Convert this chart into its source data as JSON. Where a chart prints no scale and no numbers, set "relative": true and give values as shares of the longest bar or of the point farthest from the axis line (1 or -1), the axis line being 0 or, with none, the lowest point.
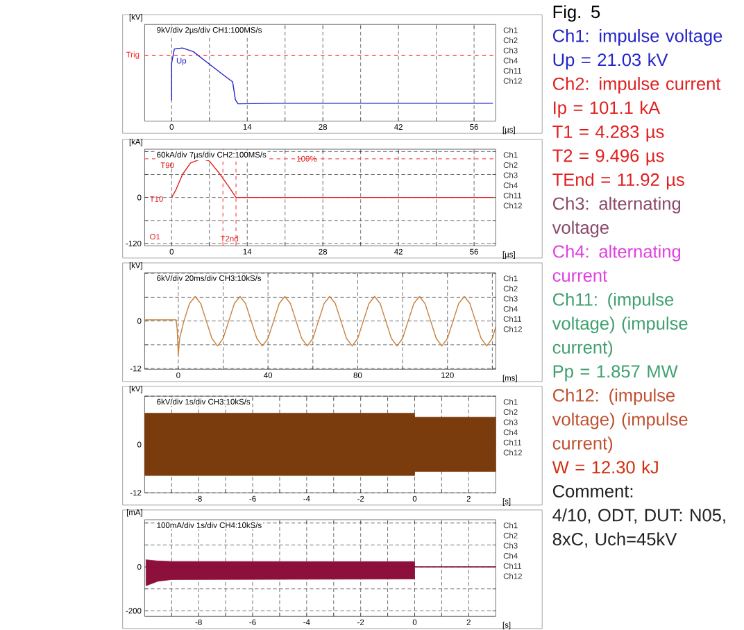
{
  "chart_data": [
    {
      "type": "line",
      "relative": true,
      "xlabel": "[µs]",
      "ylabel": "[kV]",
      "xlim": [
        -5,
        60
      ],
      "xticks": [
        0,
        {
          "value": 7,
          "label": null
        },
        14,
        {
          "value": 21,
          "label": null
        },
        28,
        {
          "value": 35,
          "label": null
        },
        42,
        {
          "value": 49,
          "label": null
        },
        56
      ],
      "grid": "x",
      "series": [
        {
          "color": "#2424c8",
          "x": [
            0,
            0,
            0.5,
            2,
            4,
            7,
            10,
            11.3,
            11.8,
            12.3,
            20,
            59.5
          ],
          "values": [
            0,
            0.71,
            0.98,
            1,
            0.93,
            0.69,
            0.45,
            0.35,
            0.01,
            -0.07,
            -0.06,
            -0.06
          ]
        }
      ],
      "ref_lines": [
        {
          "axis": "y",
          "value": 0.86,
          "label": "Trig",
          "color": "#ff2020",
          "line_style": "dashed"
        }
      ],
      "annotations": [
        "9kV/div  2µs/div  CH1:100MS/s",
        "Ch1",
        "Ch2",
        "Ch3",
        "Ch4",
        "Ch11",
        "Ch12",
        {
          "text": "Up",
          "x": 1.8,
          "y": 0.74
        }
      ]
    },
    {
      "type": "line",
      "xlabel": "[µs]",
      "ylabel": "[kA]",
      "xlim": [
        -5,
        60
      ],
      "ylim": [
        -126,
        126
      ],
      "xticks": [
        0,
        {
          "value": 7,
          "label": null
        },
        14,
        {
          "value": 21,
          "label": null
        },
        28,
        {
          "value": 35,
          "label": null
        },
        42,
        {
          "value": 49,
          "label": null
        },
        56
      ],
      "yticks": [
        -120,
        {
          "value": -60,
          "label": null
        },
        0,
        {
          "value": 60,
          "label": null
        },
        {
          "value": 120,
          "label": null
        }
      ],
      "grid": true,
      "series": [
        {
          "color": "#e02020",
          "x": [
            0,
            0.8,
            2,
            3.5,
            5.5,
            7,
            9,
            10.5,
            11.92,
            59.5
          ],
          "values": [
            0,
            20,
            60,
            90,
            101,
            95,
            60,
            30,
            0,
            0
          ]
        }
      ],
      "ref_lines": [
        {
          "axis": "y",
          "value": 101,
          "color": "#ff5050",
          "line_style": "dashed"
        },
        {
          "axis": "x",
          "value": 9.496,
          "color": "#ff5050",
          "line_style": "dashed"
        },
        {
          "axis": "x",
          "value": 11.92,
          "color": "#ff5050",
          "line_style": "dashed"
        }
      ],
      "annotations": [
        "60kA/div  7µs/div  CH2:100MS/s",
        "O1",
        "T10",
        "Ch1",
        "Ch2",
        "Ch3",
        "Ch4",
        "Ch11",
        "Ch12",
        {
          "text": "T90",
          "x": -0.8,
          "y": 84
        },
        {
          "text": "T2nd",
          "x": 10.7,
          "y": -107
        },
        {
          "text": "100%",
          "x": 25,
          "y": 101
        }
      ]
    },
    {
      "type": "line",
      "xlabel": "[ms]",
      "ylabel": "[kV]",
      "xlim": [
        -15,
        141.5
      ],
      "ylim": [
        -12.2,
        12.2
      ],
      "xticks": [
        0,
        {
          "value": 20,
          "label": null
        },
        40,
        {
          "value": 60,
          "label": null
        },
        80,
        {
          "value": 100,
          "label": null
        },
        120,
        {
          "value": 140,
          "label": null
        }
      ],
      "yticks": [
        -12,
        {
          "value": -6,
          "label": null
        },
        0,
        {
          "value": 6,
          "label": null
        },
        {
          "value": 12,
          "label": null
        }
      ],
      "grid": true,
      "series": [
        {
          "color": "#c8823c",
          "x": [
            -15,
            -1,
            -0.5,
            0,
            0.6,
            2.5,
            5,
            7.5,
            10,
            12.5,
            15,
            17.5,
            20,
            22.5,
            25,
            27.5,
            30,
            32.5,
            35,
            37.5,
            40,
            42.5,
            45,
            47.5,
            50,
            52.5,
            55,
            57.5,
            60,
            62.5,
            65,
            67.5,
            70,
            72.5,
            75,
            77.5,
            80,
            82.5,
            85,
            87.5,
            90,
            92.5,
            95,
            97.5,
            100,
            102.5,
            105,
            107.5,
            110,
            112.5,
            115,
            117.5,
            120,
            122.5,
            125,
            127.5,
            130,
            132.5,
            135,
            137.5,
            140,
            141.5
          ],
          "values": [
            0.3,
            0.3,
            -2,
            -8.6,
            -4.4,
            0,
            4.4,
            6.2,
            4.4,
            0,
            -4.4,
            -6.3,
            -4.4,
            0,
            4.4,
            6.2,
            4.4,
            0,
            -4.4,
            -6.3,
            -4.4,
            0,
            4.4,
            6.2,
            4.4,
            0,
            -4.4,
            -6.3,
            -4.4,
            0,
            4.4,
            6.2,
            4.4,
            0,
            -4.4,
            -6.3,
            -4.4,
            0,
            4.4,
            6.2,
            4.4,
            0,
            -4.4,
            -6.3,
            -4.4,
            0,
            4.4,
            6.2,
            4.4,
            0,
            -4.4,
            -6.3,
            -4.4,
            0,
            4.4,
            6.2,
            4.4,
            0,
            -4.4,
            -6.3,
            -4.4,
            -1.5
          ]
        }
      ],
      "annotations": [
        "6kV/div  20ms/div  CH3:10kS/s",
        "Ch1",
        "Ch2",
        "Ch3",
        "Ch4",
        "Ch11",
        "Ch12"
      ]
    },
    {
      "type": "area",
      "xlabel": "[s]",
      "ylabel": "[kV]",
      "xlim": [
        -10,
        3
      ],
      "ylim": [
        -12,
        12
      ],
      "xticks": [
        {
          "value": -9,
          "label": null
        },
        -8,
        {
          "value": -7,
          "label": null
        },
        -6,
        {
          "value": -5,
          "label": null
        },
        -4,
        {
          "value": -3,
          "label": null
        },
        -2,
        {
          "value": -1,
          "label": null
        },
        0,
        {
          "value": 1,
          "label": null
        },
        2
      ],
      "yticks": [
        -12,
        {
          "value": -6,
          "label": null
        },
        0,
        {
          "value": 6,
          "label": null
        },
        {
          "value": 12,
          "label": null
        }
      ],
      "grid": true,
      "series": [
        {
          "color": "#7a3c0c",
          "x": [
            -10,
            0,
            0,
            3
          ],
          "values": [
            7.8,
            7.8,
            6.8,
            6.8
          ]
        },
        {
          "color": "#7a3c0c",
          "x": [
            -10,
            0,
            0,
            3
          ],
          "values": [
            -7.7,
            -7.7,
            -6.7,
            -6.7
          ]
        }
      ],
      "annotations": [
        "6kV/div  1s/div  CH3:10kS/s",
        "Ch1",
        "Ch2",
        "Ch3",
        "Ch4",
        "Ch11",
        "Ch12"
      ]
    },
    {
      "type": "area",
      "xlabel": "[s]",
      "ylabel": "[mA]",
      "xlim": [
        -10,
        3
      ],
      "ylim": [
        -225,
        215
      ],
      "xticks": [
        {
          "value": -9,
          "label": null
        },
        -8,
        {
          "value": -7,
          "label": null
        },
        -6,
        {
          "value": -5,
          "label": null
        },
        -4,
        {
          "value": -3,
          "label": null
        },
        -2,
        {
          "value": -1,
          "label": null
        },
        0,
        {
          "value": 1,
          "label": null
        },
        2
      ],
      "yticks": [
        -200,
        {
          "value": -100,
          "label": null
        },
        0,
        {
          "value": 100,
          "label": null
        },
        {
          "value": 200,
          "label": null
        }
      ],
      "grid": true,
      "series": [
        {
          "color": "#8c0f3c",
          "x": [
            -9.95,
            -9.5,
            -9,
            0,
            0,
            3
          ],
          "values": [
            33,
            27,
            25,
            24,
            0,
            0
          ]
        },
        {
          "color": "#8c0f3c",
          "x": [
            -9.95,
            -9.5,
            -9,
            0,
            0,
            3
          ],
          "values": [
            -86,
            -65,
            -58,
            -55,
            0,
            0
          ]
        }
      ],
      "annotations": [
        "100mA/div  1s/div  CH4:10kS/s",
        "Ch1",
        "Ch2",
        "Ch3",
        "Ch4",
        "Ch11",
        "Ch12"
      ]
    },
    {
      "type": "other",
      "title": "Fig. 5",
      "annotations": [
        "Ch1: impulse voltage",
        "Up = 21.03 kV",
        "Ch2: impulse current",
        "Ip = 101.1 kA",
        "T1 = 4.283 µs",
        "T2 = 9.496 µs",
        "TEnd = 11.92 µs",
        "Ch3: alternating voltage",
        "Ch4: alternating current",
        "Ch11: (impulse voltage) (impulse current)",
        "Pp = 1.857 MW",
        "Ch12: (impulse voltage) (impulse current)",
        "W = 12.30 kJ",
        "Comment:",
        "4/10, ODT, DUT: N05, 8xC, Uch=45kV"
      ],
      "colors": [
        "#2424c8",
        "#2424c8",
        "#e02020",
        "#e02020",
        "#e02020",
        "#e02020",
        "#e02020",
        "#8a4a6a",
        "#e040e0",
        "#40a070",
        "#40a070",
        "#c05030",
        "#d03010",
        "#222222",
        "#222222"
      ]
    }
  ]
}
